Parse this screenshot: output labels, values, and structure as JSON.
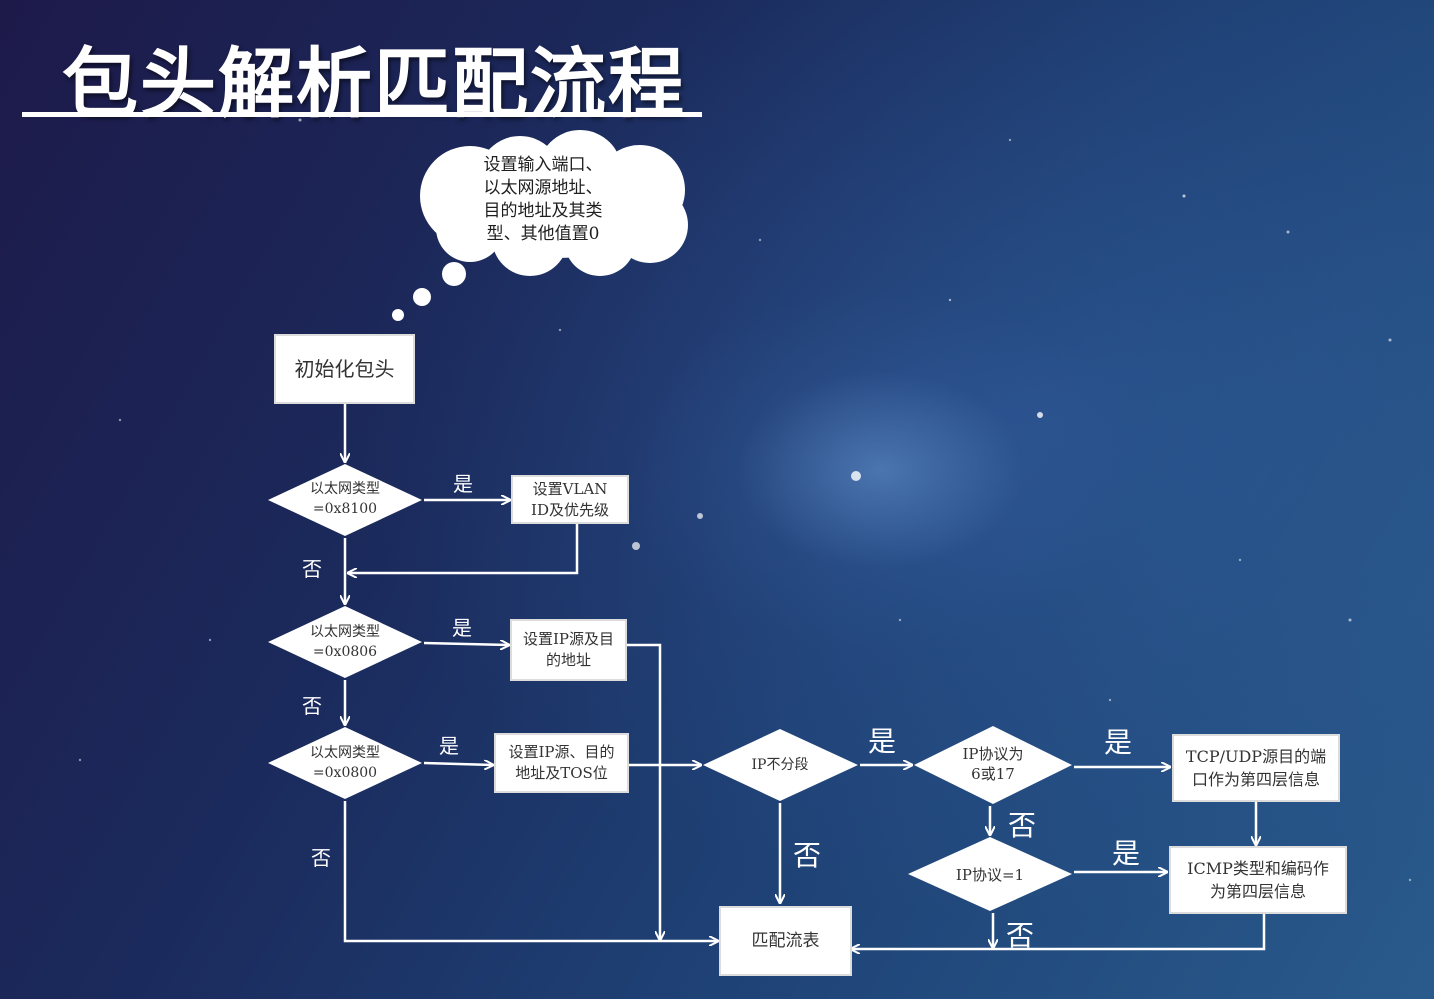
{
  "title": "包头解析匹配流程",
  "cloud": {
    "lines": [
      "设置输入端口、",
      "以太网源地址、",
      "目的地址及其类",
      "型、其他值置0"
    ]
  },
  "nodes": {
    "init": "初始化包头",
    "eth8100": [
      "以太网类型",
      "=0x8100"
    ],
    "set_vlan": [
      "设置VLAN",
      "ID及优先级"
    ],
    "eth0806": [
      "以太网类型",
      "=0x0806"
    ],
    "set_ip_src_dst": [
      "设置IP源及目",
      "的地址"
    ],
    "eth0800": [
      "以太网类型",
      "=0x0800"
    ],
    "set_ip_tos": [
      "设置IP源、目的",
      "地址及TOS位"
    ],
    "ip_no_frag": "IP不分段",
    "ip_proto_6_17": [
      "IP协议为",
      "6或17"
    ],
    "tcp_udp_ports": [
      "TCP/UDP源目的端",
      "口作为第四层信息"
    ],
    "ip_proto_1": "IP协议=1",
    "icmp_info": [
      "ICMP类型和编码作",
      "为第四层信息"
    ],
    "match_table": "匹配流表"
  },
  "labels": {
    "yes": "是",
    "no": "否"
  },
  "colors": {
    "line": "#ffffff",
    "box_fill": "#ffffff",
    "text_dark": "#333333"
  }
}
